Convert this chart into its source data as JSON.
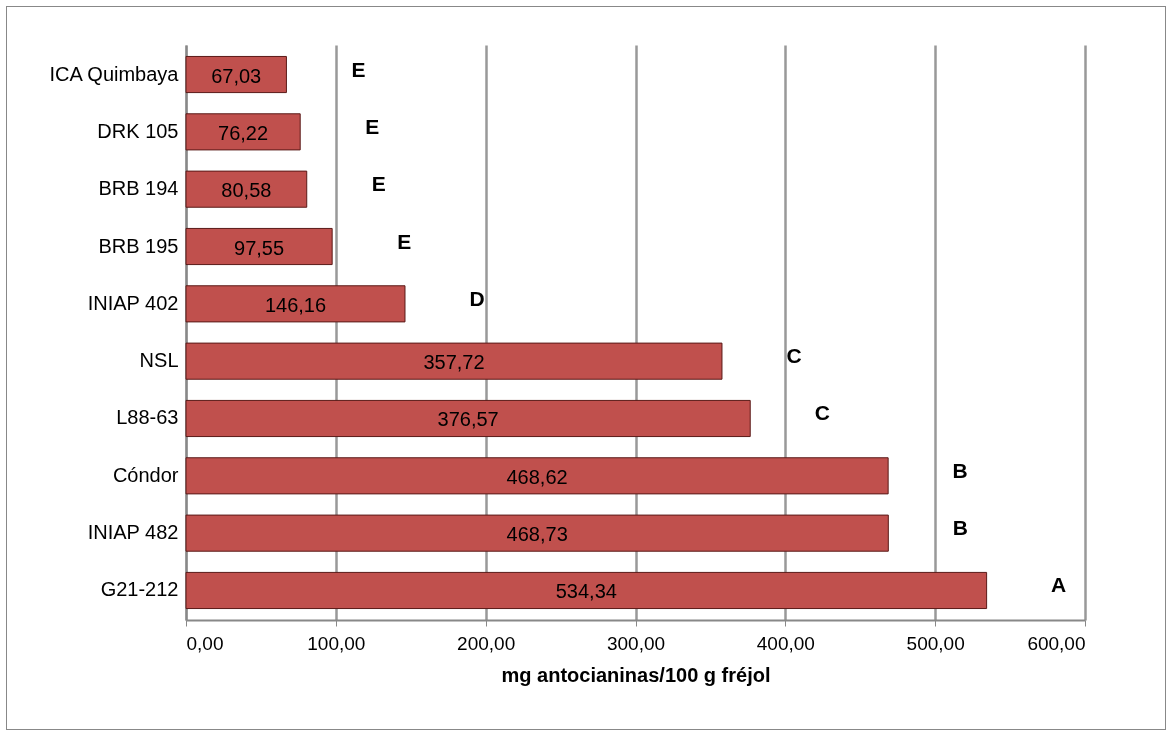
{
  "chart_data": {
    "type": "bar",
    "orientation": "horizontal",
    "xlabel": "mg antocianinas/100 g fréjol",
    "categories": [
      "ICA Quimbaya",
      "DRK 105",
      "BRB 194",
      "BRB 195",
      "INIAP 402",
      "NSL",
      "L88-63",
      "Cóndor",
      "INIAP 482",
      "G21-212"
    ],
    "values": [
      67.03,
      76.22,
      80.58,
      97.55,
      146.16,
      357.72,
      376.57,
      468.62,
      468.73,
      534.34
    ],
    "value_labels": [
      "67,03",
      "76,22",
      "80,58",
      "97,55",
      "146,16",
      "357,72",
      "376,57",
      "468,62",
      "468,73",
      "534,34"
    ],
    "color": "#c0504d",
    "xlim": [
      0,
      600
    ],
    "xticks": [
      {
        "value": 0,
        "label": "0,00"
      },
      {
        "value": 100,
        "label": "100,00"
      },
      {
        "value": 200,
        "label": "200,00"
      },
      {
        "value": 300,
        "label": "300,00"
      },
      {
        "value": 400,
        "label": "400,00"
      },
      {
        "value": 500,
        "label": "500,00"
      },
      {
        "value": 600,
        "label": "600,00"
      }
    ],
    "grid": "x",
    "annotations": [
      "E",
      "E",
      "E",
      "E",
      "D",
      "C",
      "C",
      "B",
      "B",
      "A"
    ]
  }
}
